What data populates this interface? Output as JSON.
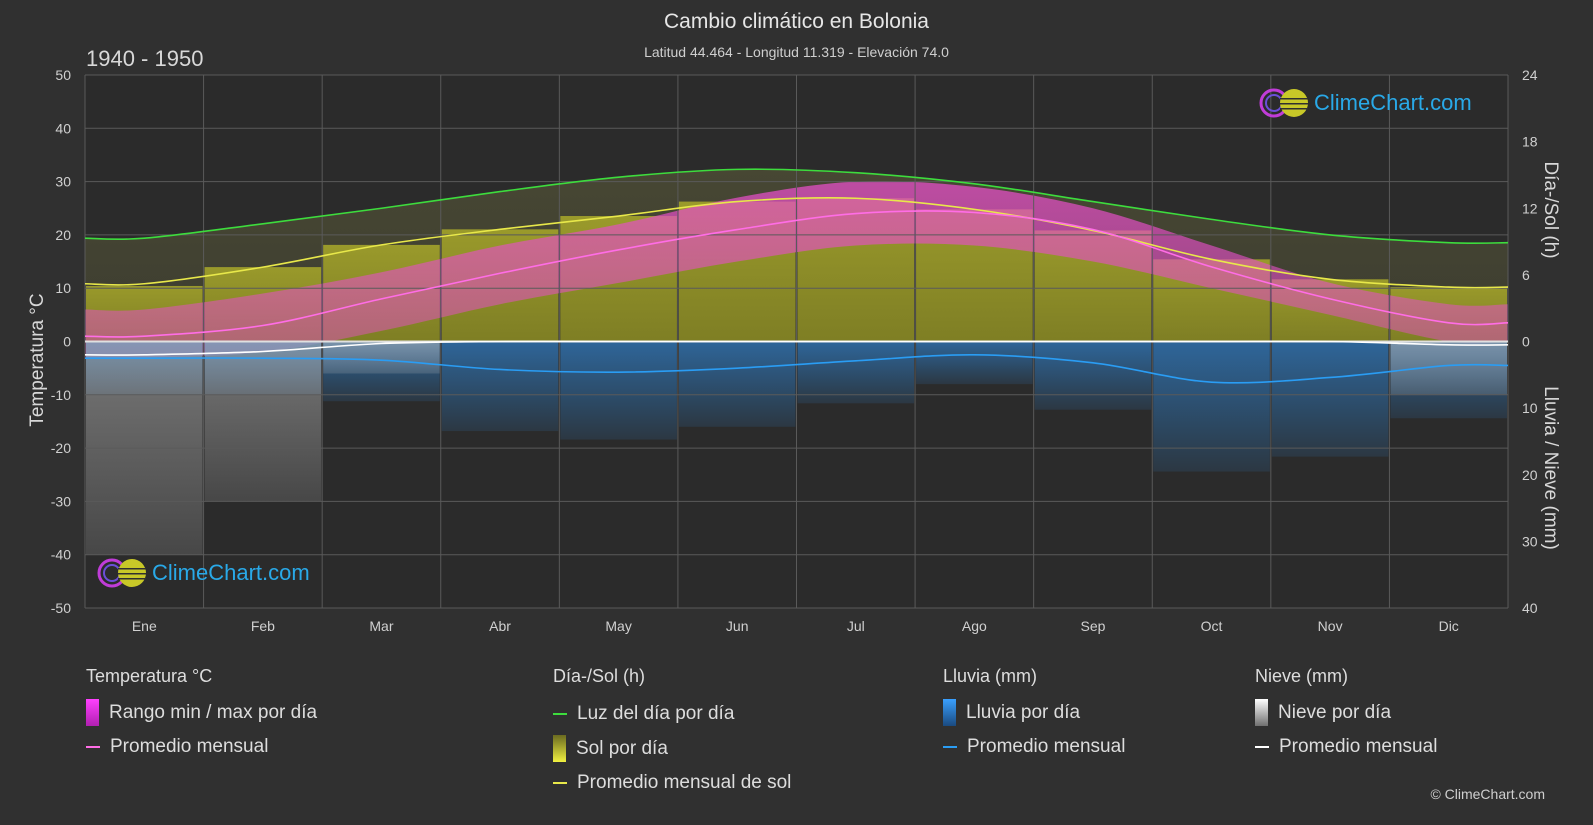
{
  "header": {
    "title": "Cambio climático en Bolonia",
    "subtitle": "Latitud 44.464 - Longitud 11.319 - Elevación 74.0",
    "period": "1940 - 1950"
  },
  "logo_text": "ClimeChart.com",
  "copyright": "© ClimeChart.com",
  "colors": {
    "background": "#303030",
    "temp_range": "#e64ec8",
    "temp_avg": "#ff6de6",
    "daylight": "#3ddc3d",
    "sun_fill": "#a9a92a",
    "sun_avg": "#e8e84a",
    "rain": "#2f7fc9",
    "rain_avg": "#2a9df4",
    "snow": "#b8b8b8",
    "snow_avg": "#ffffff",
    "logo": "#29a9e8"
  },
  "legend": {
    "temperature": {
      "title": "Temperatura °C",
      "items": [
        "Rango min / max por día",
        "Promedio mensual"
      ]
    },
    "sun": {
      "title": "Día-/Sol (h)",
      "items": [
        "Luz del día por día",
        "Sol por día",
        "Promedio mensual de sol"
      ]
    },
    "rain": {
      "title": "Lluvia (mm)",
      "items": [
        "Lluvia por día",
        "Promedio mensual"
      ]
    },
    "snow": {
      "title": "Nieve (mm)",
      "items": [
        "Nieve por día",
        "Promedio mensual"
      ]
    }
  },
  "chart_data": {
    "type": "area",
    "categories": [
      "Ene",
      "Feb",
      "Mar",
      "Abr",
      "May",
      "Jun",
      "Jul",
      "Ago",
      "Sep",
      "Oct",
      "Nov",
      "Dic"
    ],
    "axes": {
      "left": {
        "label": "Temperatura °C",
        "min": -50,
        "max": 50,
        "ticks": [
          50,
          40,
          30,
          20,
          10,
          0,
          -10,
          -20,
          -30,
          -40,
          -50
        ]
      },
      "right_top": {
        "label": "Día-/Sol (h)",
        "min": 0,
        "max": 24,
        "ticks": [
          24,
          18,
          12,
          6,
          0
        ]
      },
      "right_bottom": {
        "label": "Lluvia / Nieve (mm)",
        "min": 0,
        "max": 40,
        "ticks": [
          0,
          10,
          20,
          30,
          40
        ]
      }
    },
    "grid": true,
    "series": [
      {
        "name": "Rango min / max por día (max)",
        "axis": "temperature",
        "values": [
          6,
          9,
          13,
          18,
          22,
          27,
          30,
          29,
          25,
          18,
          11,
          7
        ]
      },
      {
        "name": "Rango min / max por día (min)",
        "axis": "temperature",
        "values": [
          -3,
          -2,
          2,
          7,
          11,
          15,
          18,
          18,
          15,
          10,
          5,
          0
        ]
      },
      {
        "name": "Promedio mensual (temperatura)",
        "axis": "temperature",
        "values": [
          1.0,
          3.0,
          8.0,
          12.8,
          17.2,
          21.0,
          24.0,
          24.2,
          21.0,
          14.0,
          8.0,
          3.5
        ]
      },
      {
        "name": "Luz del día por día",
        "axis": "sun_hours",
        "values": [
          9.3,
          10.6,
          12.0,
          13.5,
          14.8,
          15.5,
          15.2,
          14.2,
          12.6,
          11.0,
          9.6,
          8.9
        ]
      },
      {
        "name": "Sol por día",
        "axis": "sun_hours",
        "values": [
          5.0,
          6.7,
          8.7,
          10.1,
          11.3,
          12.6,
          12.9,
          11.9,
          10.0,
          7.4,
          5.6,
          4.9
        ]
      },
      {
        "name": "Promedio mensual de sol",
        "axis": "sun_hours",
        "values": [
          5.2,
          6.7,
          8.7,
          10.1,
          11.3,
          12.6,
          12.9,
          11.9,
          10.0,
          7.4,
          5.6,
          4.9
        ]
      },
      {
        "name": "Lluvia por día",
        "axis": "precip_mm",
        "values": [
          2.5,
          2.5,
          2.8,
          4.2,
          4.6,
          4.0,
          2.9,
          2.0,
          3.2,
          6.1,
          5.4,
          3.6
        ]
      },
      {
        "name": "Promedio mensual (lluvia)",
        "axis": "precip_mm",
        "values": [
          2.5,
          2.5,
          2.8,
          4.2,
          4.6,
          4.0,
          2.9,
          2.0,
          3.2,
          6.1,
          5.4,
          3.6
        ]
      },
      {
        "name": "Nieve por día",
        "axis": "precip_mm",
        "values": [
          2.0,
          1.5,
          0.3,
          0,
          0,
          0,
          0,
          0,
          0,
          0,
          0,
          0.5
        ]
      },
      {
        "name": "Promedio mensual (nieve)",
        "axis": "precip_mm",
        "values": [
          2.0,
          1.5,
          0.3,
          0,
          0,
          0,
          0,
          0,
          0,
          0,
          0,
          0.5
        ]
      }
    ]
  }
}
